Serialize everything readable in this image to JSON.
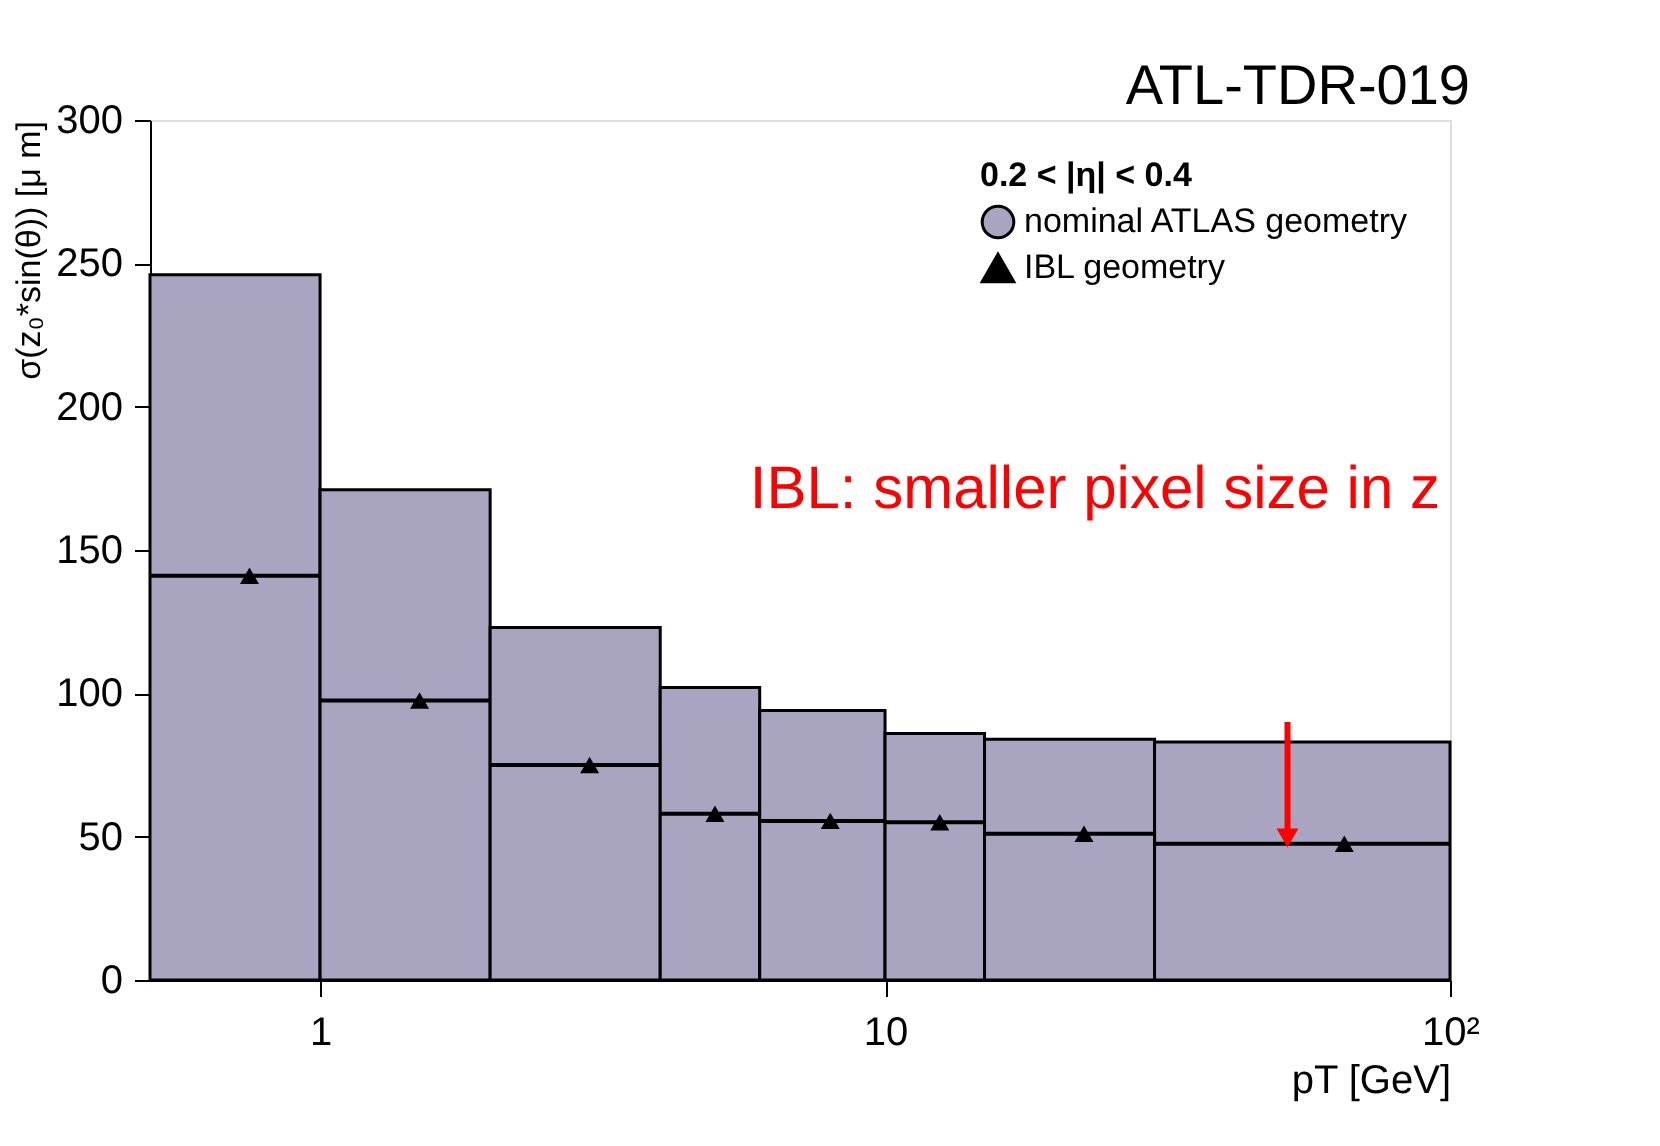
{
  "chart_data": {
    "type": "histogram",
    "xlabel": "pT [GeV]",
    "ylabel": "σ(z₀*sin(θ))  [μ m]",
    "legend_title": "0.2 < |η| < 0.4",
    "bins": [
      0.5,
      1,
      2,
      4,
      6,
      10,
      15,
      30,
      100
    ],
    "series": [
      {
        "name": "nominal ATLAS geometry",
        "color": "#a9a5c0",
        "values": [
          246,
          171,
          123,
          102,
          94,
          86,
          84,
          83
        ]
      },
      {
        "name": "IBL geometry",
        "type": "scatter",
        "color": "#000000",
        "marker": "triangle",
        "x": [
          0.75,
          1.5,
          3,
          5,
          8,
          12.5,
          22.5,
          65
        ],
        "values": [
          141,
          97.5,
          75,
          58,
          55.5,
          55,
          51,
          47.5
        ],
        "xerrors": [
          0.25,
          0.5,
          1,
          1,
          2,
          2.5,
          7.5,
          35
        ]
      }
    ],
    "log": "x",
    "xlim": [
      0.5,
      100
    ],
    "xticks": [
      1,
      10,
      {
        "value": 100,
        "label": "10²"
      }
    ],
    "ylim": [
      0,
      300
    ],
    "yticks": [
      0,
      50,
      100,
      150,
      200,
      250,
      300
    ],
    "grid": false,
    "legend": "top right",
    "annotations": [
      "ATL-TDR-019",
      "IBL: smaller pixel size in z"
    ]
  }
}
